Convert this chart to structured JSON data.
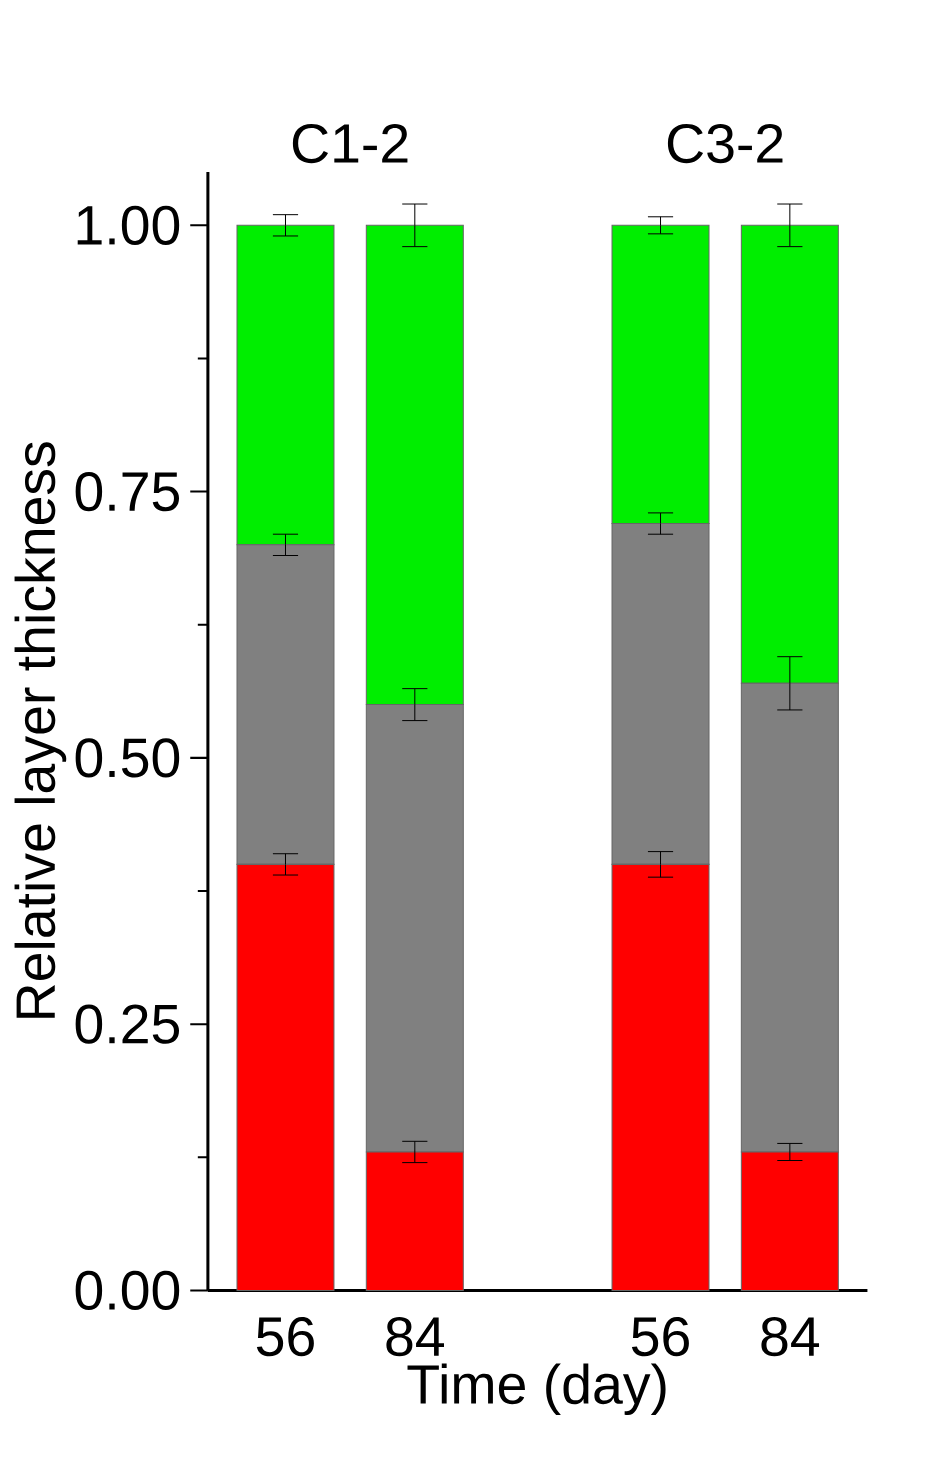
{
  "chart_data": {
    "type": "bar",
    "stacked": true,
    "ylabel": "Relative layer thickness",
    "xlabel": "Time (day)",
    "categories": [
      "56",
      "84",
      "56",
      "84"
    ],
    "annotations": [
      "C1-2",
      "C3-2"
    ],
    "ylim": [
      0,
      1.05
    ],
    "yticks": [
      {
        "value": 0,
        "label": "0.00"
      },
      {
        "value": 0.25,
        "label": "0.25"
      },
      {
        "value": 0.5,
        "label": "0.50"
      },
      {
        "value": 0.75,
        "label": "0.75"
      },
      {
        "value": 1,
        "label": "1.00"
      }
    ],
    "series": [
      {
        "color": "#ff0000",
        "values": [
          0.4,
          0.13,
          0.4,
          0.13
        ],
        "errors": [
          0.01,
          0.01,
          0.012,
          0.008
        ]
      },
      {
        "color": "#808080",
        "values": [
          0.3,
          0.42,
          0.32,
          0.44
        ],
        "errors": [
          0.01,
          0.015,
          0.01,
          0.025
        ]
      },
      {
        "color": "#00ee00",
        "values": [
          0.3,
          0.45,
          0.28,
          0.43
        ],
        "errors": [
          0.01,
          0.02,
          0.008,
          0.02
        ]
      }
    ]
  }
}
